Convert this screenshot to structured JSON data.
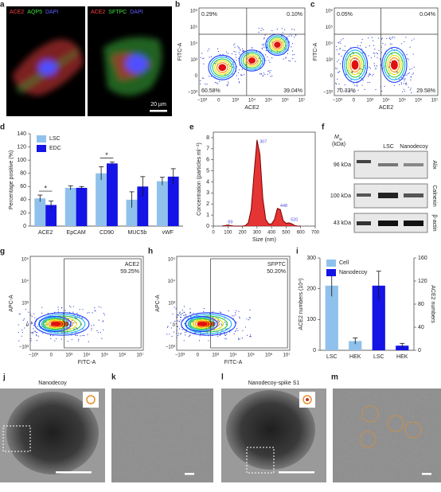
{
  "a": {
    "label": "a",
    "left_stains": [
      "ACE2",
      "AQP5",
      "DAPI"
    ],
    "right_stains": [
      "ACE2",
      "SFTPC",
      "DAPI"
    ],
    "scale_bar": "20 µm"
  },
  "b": {
    "label": "b",
    "x_label": "ACE2",
    "y_label": "FITC-A",
    "quadrants": [
      "0.29%",
      "0.10%",
      "60.58%",
      "39.04%"
    ],
    "xticks": [
      "−10³",
      "0",
      "10³",
      "10⁴",
      "10⁵",
      "10⁶",
      "10⁷"
    ],
    "yticks": [
      "10⁶",
      "10⁵",
      "10⁴",
      "10³",
      "0",
      "−10³"
    ]
  },
  "c": {
    "label": "c",
    "x_label": "ACE2",
    "y_label": "FITC-A",
    "quadrants": [
      "0.05%",
      "0.04%",
      "70.33%",
      "29.58%"
    ],
    "xticks": [
      "−10³",
      "0",
      "10³",
      "10⁴",
      "10⁵",
      "10⁶",
      "10⁷"
    ],
    "yticks": [
      "10⁶",
      "10⁵",
      "10⁴",
      "10³",
      "0",
      "−10³"
    ]
  },
  "d": {
    "label": "d",
    "chart_data": {
      "type": "bar",
      "y_label": "Percentage positive (%)",
      "categories": [
        "ACE2",
        "EpCAM",
        "CD90",
        "MUC5b",
        "vWF"
      ],
      "series": [
        {
          "name": "LSC",
          "color": "#8fc1ec",
          "values": [
            42,
            58,
            80,
            40,
            68
          ],
          "errors": [
            5,
            3,
            10,
            12,
            6
          ]
        },
        {
          "name": "EDC",
          "color": "#1414e6",
          "values": [
            32,
            58,
            95,
            60,
            75
          ],
          "errors": [
            6,
            2,
            2,
            15,
            12
          ]
        }
      ],
      "ylim": [
        0,
        140
      ],
      "yticks": [
        0,
        20,
        40,
        60,
        80,
        100,
        120,
        140
      ],
      "annotations": [
        {
          "text": "*",
          "category": "ACE2"
        },
        {
          "text": "*",
          "category": "CD90"
        }
      ]
    }
  },
  "e": {
    "label": "e",
    "chart_data": {
      "type": "line",
      "x_label": "Size (nm)",
      "y_label": "Concentration (particles ml⁻¹)",
      "x": [
        60,
        80,
        100,
        120,
        140,
        160,
        180,
        200,
        220,
        240,
        260,
        280,
        300,
        320,
        340,
        360,
        380,
        400,
        420,
        440,
        460,
        480,
        500,
        520,
        540,
        560,
        580,
        600
      ],
      "series": [
        {
          "color": "#e01010",
          "values": [
            0,
            0.05,
            0.1,
            0.05,
            0,
            0,
            0,
            0,
            0.05,
            0.3,
            1.5,
            4.8,
            7.8,
            6.5,
            2.5,
            0.6,
            0.2,
            0.2,
            0.6,
            1.6,
            1.5,
            0.5,
            0.25,
            0.3,
            0.2,
            0.05,
            0,
            0
          ]
        }
      ],
      "peaks": [
        89,
        307,
        448,
        520
      ],
      "xlim": [
        0,
        700
      ],
      "xticks": [
        0,
        100,
        200,
        300,
        400,
        500,
        600,
        700
      ],
      "ylim": [
        0,
        8.5
      ],
      "yticks": [
        0,
        1,
        2,
        3,
        4,
        5,
        6,
        7,
        8
      ]
    }
  },
  "f": {
    "label": "f",
    "mw": "M",
    "mw_sub": "w",
    "mw_unit": "(kDa)",
    "lanes": [
      "LSC",
      "Nanodecoy"
    ],
    "rows": [
      {
        "size": "96 kDa",
        "protein": "Alix"
      },
      {
        "size": "100 kDa",
        "protein": "Calnexin"
      },
      {
        "size": "43 kDa",
        "protein": "β-actin"
      }
    ]
  },
  "g": {
    "label": "g",
    "x_label": "FITC-A",
    "y_label": "APC-A",
    "gate": "ACE2",
    "percent": "59.25%",
    "xticks": [
      "−10³",
      "0",
      "10³",
      "10⁴",
      "10⁵",
      "10⁶",
      "10⁷"
    ],
    "yticks": [
      "10⁵",
      "10⁴",
      "10³",
      "0",
      "−10³"
    ]
  },
  "h": {
    "label": "h",
    "x_label": "FITC-A",
    "y_label": "APC-A",
    "gate": "SFPTC",
    "percent": "50.20%",
    "xticks": [
      "−10³",
      "0",
      "10³",
      "10⁴",
      "10⁵",
      "10⁶",
      "10⁷"
    ],
    "yticks": [
      "10⁵",
      "10⁴",
      "10³",
      "0",
      "−10³"
    ]
  },
  "i": {
    "label": "i",
    "chart_data": {
      "type": "bar",
      "y_label": "ACE2 numbers (10⁴)",
      "y2_label": "ACE2 numbers",
      "categories": [
        "LSC",
        "HEK",
        "LSC",
        "HEK"
      ],
      "series": [
        {
          "name": "Cell",
          "color": "#8fc1ec",
          "values": [
            210,
            30,
            null,
            null
          ],
          "errors": [
            35,
            10,
            null,
            null
          ]
        },
        {
          "name": "Nanodecoy",
          "color": "#1414e6",
          "axis": "y2",
          "values": [
            null,
            null,
            112,
            8
          ],
          "errors": [
            null,
            null,
            25,
            4
          ]
        }
      ],
      "ylim": [
        0,
        300
      ],
      "yticks": [
        0,
        100,
        200,
        300
      ],
      "y2lim": [
        0,
        160
      ],
      "y2ticks": [
        0,
        40,
        80,
        120,
        160
      ]
    }
  },
  "j": {
    "label": "j",
    "title": "Nanodecoy"
  },
  "k": {
    "label": "k"
  },
  "l": {
    "label": "l",
    "title": "Nanodecoy-spike S1"
  },
  "m": {
    "label": "m"
  }
}
